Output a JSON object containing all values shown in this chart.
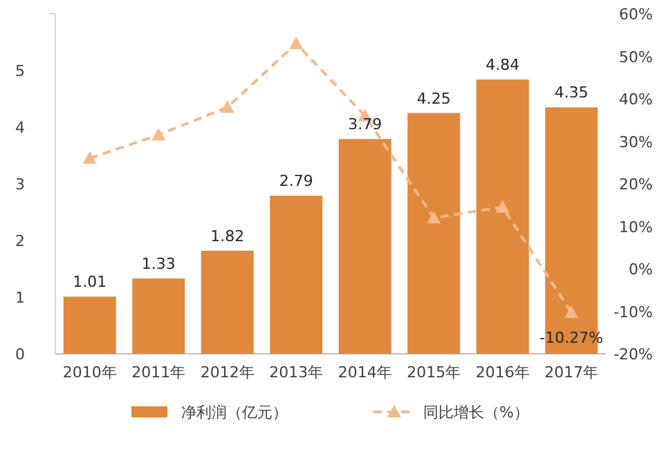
{
  "chart_data": {
    "type": "bar",
    "categories": [
      "2010年",
      "2011年",
      "2012年",
      "2013年",
      "2014年",
      "2015年",
      "2016年",
      "2017年"
    ],
    "series": [
      {
        "name": "净利润（亿元）",
        "color": "#e0883c",
        "values": [
          1.01,
          1.33,
          1.82,
          2.79,
          3.79,
          4.25,
          4.84,
          4.35
        ],
        "value_labels": [
          "1.01",
          "1.33",
          "1.82",
          "2.79",
          "3.79",
          "4.25",
          "4.84",
          "4.35"
        ]
      },
      {
        "name": "同比增长（%）",
        "type": "line",
        "axis": "y2",
        "color": "#f5b98a",
        "line_style": "dashed",
        "marker": "triangle",
        "values": [
          26,
          31.5,
          38,
          53,
          36,
          12,
          14.5,
          -10.27
        ],
        "value_labels": [
          null,
          null,
          null,
          null,
          null,
          null,
          null,
          "-10.27%"
        ]
      }
    ],
    "ylim": [
      0,
      6
    ],
    "yticks": [
      0,
      1,
      2,
      3,
      4,
      5,
      {
        "value": 6,
        "label": null
      }
    ],
    "y2lim": [
      -20,
      60
    ],
    "y2ticks": [
      {
        "value": -20,
        "label": "-20%"
      },
      {
        "value": -10,
        "label": "-10%"
      },
      {
        "value": 0,
        "label": "0%"
      },
      {
        "value": 10,
        "label": "10%"
      },
      {
        "value": 20,
        "label": "20%"
      },
      {
        "value": 30,
        "label": "30%"
      },
      {
        "value": 40,
        "label": "40%"
      },
      {
        "value": 50,
        "label": "50%"
      },
      {
        "value": 60,
        "label": "60%"
      }
    ],
    "grid": false,
    "legend": "bottom"
  }
}
